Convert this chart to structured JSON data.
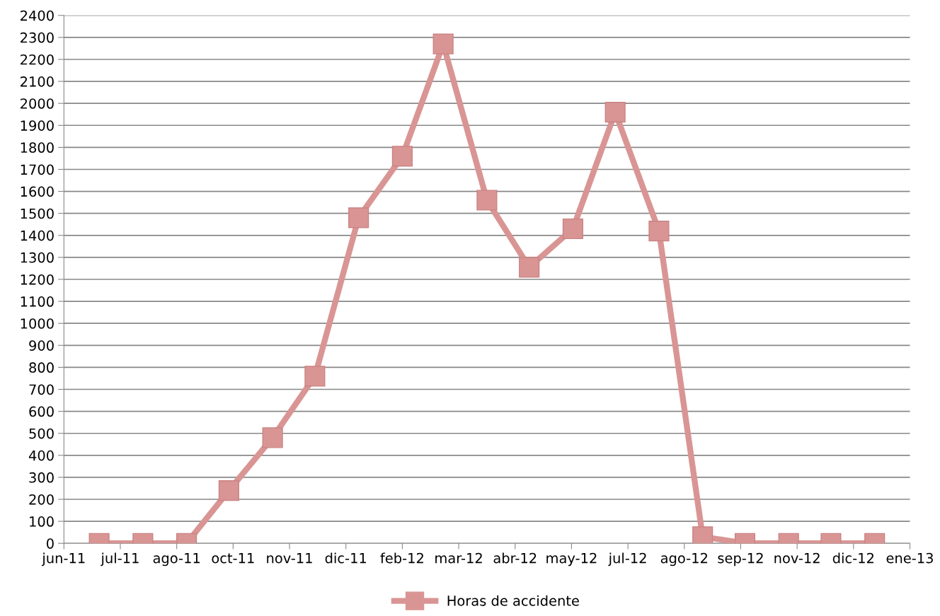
{
  "chart_data": {
    "type": "line",
    "x": [
      "2011-07-01",
      "2011-08-01",
      "2011-09-01",
      "2011-10-01",
      "2011-11-01",
      "2011-12-01",
      "2012-01-01",
      "2012-02-01",
      "2012-03-01",
      "2012-04-01",
      "2012-05-01",
      "2012-06-01",
      "2012-07-01",
      "2012-08-01",
      "2012-09-01",
      "2012-10-01",
      "2012-11-01",
      "2012-12-01",
      "2013-01-01"
    ],
    "series": [
      {
        "name": "Horas de accidente",
        "color": "#d99594",
        "values": [
          0,
          0,
          0,
          240,
          480,
          760,
          1480,
          1760,
          2270,
          1560,
          1255,
          1430,
          1960,
          1420,
          30,
          0,
          0,
          0,
          0
        ]
      }
    ],
    "xlim": [
      "2011-06-06",
      "2013-01-26"
    ],
    "xticks": [
      {
        "value": "2011-06-06",
        "label": "jun-11"
      },
      {
        "value": "2011-07-16",
        "label": "jul-11"
      },
      {
        "value": "2011-08-25",
        "label": "ago-11"
      },
      {
        "value": "2011-10-04",
        "label": "oct-11"
      },
      {
        "value": "2011-11-13",
        "label": "nov-11"
      },
      {
        "value": "2011-12-23",
        "label": "dic-11"
      },
      {
        "value": "2012-02-01",
        "label": "feb-12"
      },
      {
        "value": "2012-03-12",
        "label": "mar-12"
      },
      {
        "value": "2012-04-21",
        "label": "abr-12"
      },
      {
        "value": "2012-05-31",
        "label": "may-12"
      },
      {
        "value": "2012-07-10",
        "label": "jul-12"
      },
      {
        "value": "2012-08-19",
        "label": "ago-12"
      },
      {
        "value": "2012-09-28",
        "label": "sep-12"
      },
      {
        "value": "2012-11-07",
        "label": "nov-12"
      },
      {
        "value": "2012-12-17",
        "label": "dic-12"
      },
      {
        "value": "2013-01-26",
        "label": "ene-13"
      }
    ],
    "ylim": [
      0,
      2400
    ],
    "yticks": [
      0,
      100,
      200,
      300,
      400,
      500,
      600,
      700,
      800,
      900,
      1000,
      1100,
      1200,
      1300,
      1400,
      1500,
      1600,
      1700,
      1800,
      1900,
      2000,
      2100,
      2200,
      2300,
      2400
    ],
    "grid": "y",
    "legend": "bottom",
    "marker": "square",
    "line_style": "solid"
  }
}
